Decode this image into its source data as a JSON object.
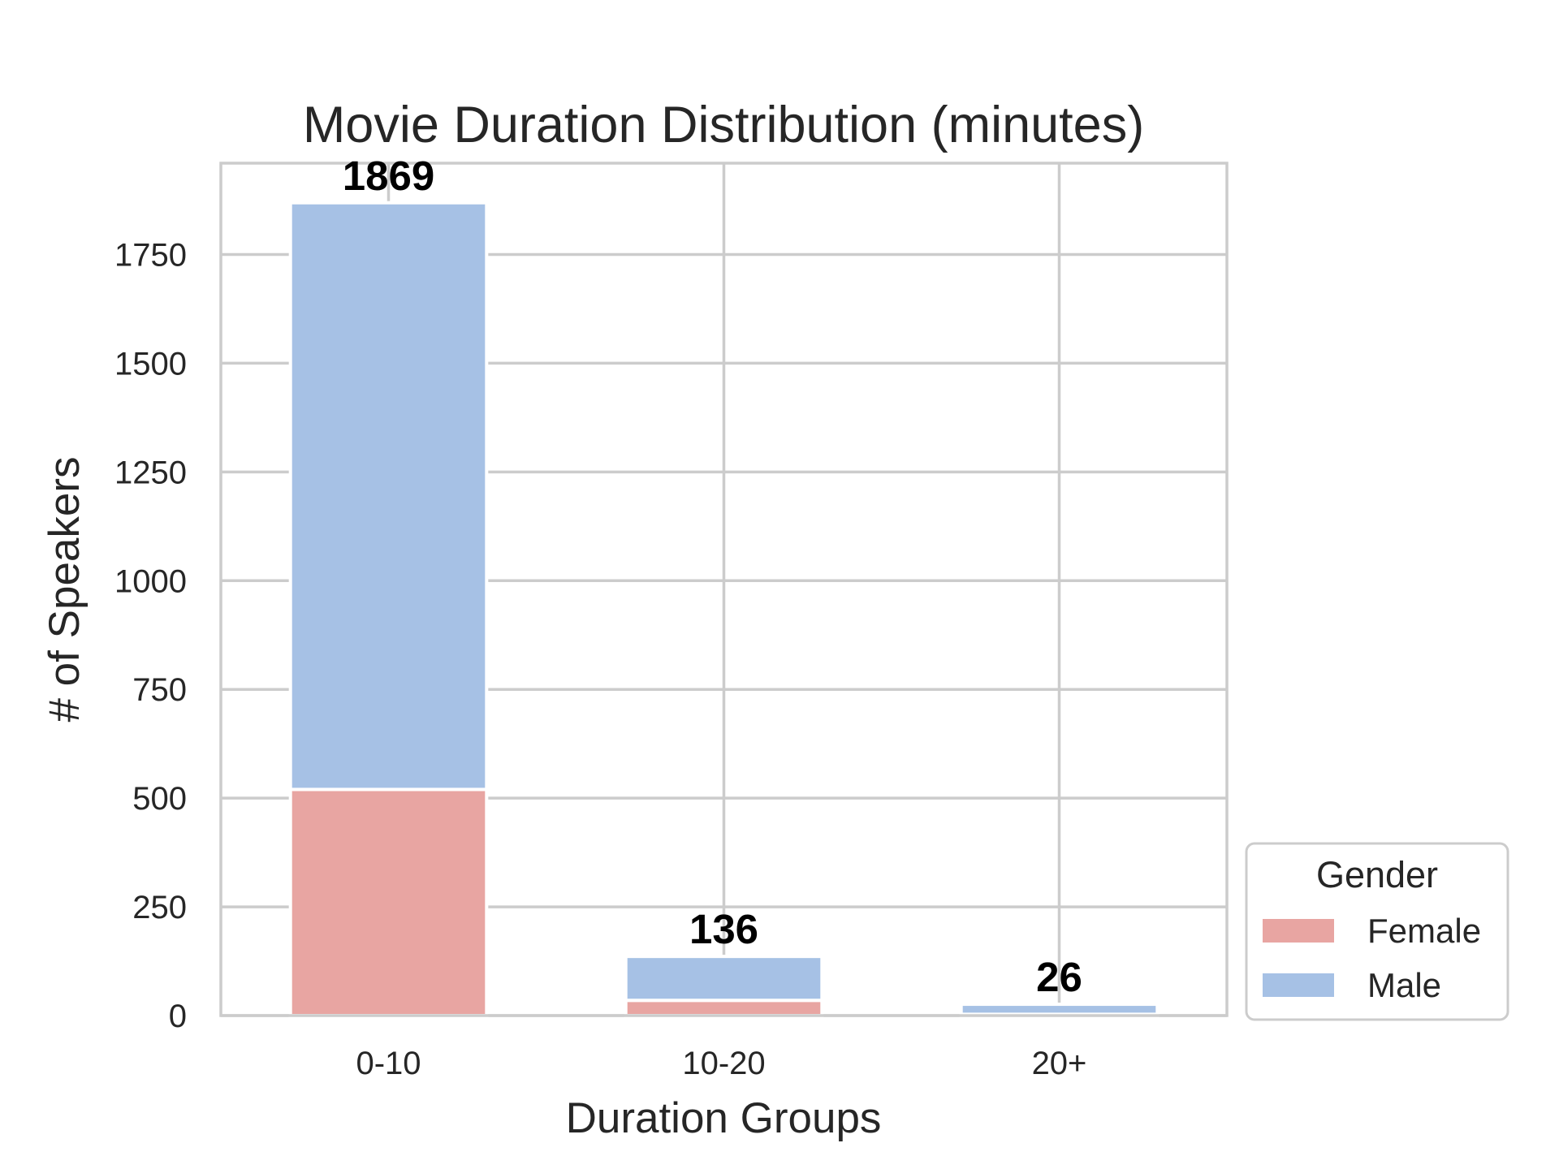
{
  "chart_data": {
    "type": "bar",
    "stacked": true,
    "title": "Movie Duration Distribution (minutes)",
    "xlabel": "Duration Groups",
    "ylabel": "# of Speakers",
    "categories": [
      "0-10",
      "10-20",
      "20+"
    ],
    "series": [
      {
        "name": "Female",
        "values": [
          520,
          35,
          3
        ],
        "color": "#e8a5a2"
      },
      {
        "name": "Male",
        "values": [
          1349,
          101,
          23
        ],
        "color": "#a6c1e5"
      }
    ],
    "totals": [
      1869,
      136,
      26
    ],
    "ylim": [
      0,
      1960
    ],
    "yticks": [
      0,
      250,
      500,
      750,
      1000,
      1250,
      1500,
      1750
    ],
    "grid": true,
    "legend": {
      "title": "Gender",
      "placement": "lower-right-outside"
    }
  }
}
